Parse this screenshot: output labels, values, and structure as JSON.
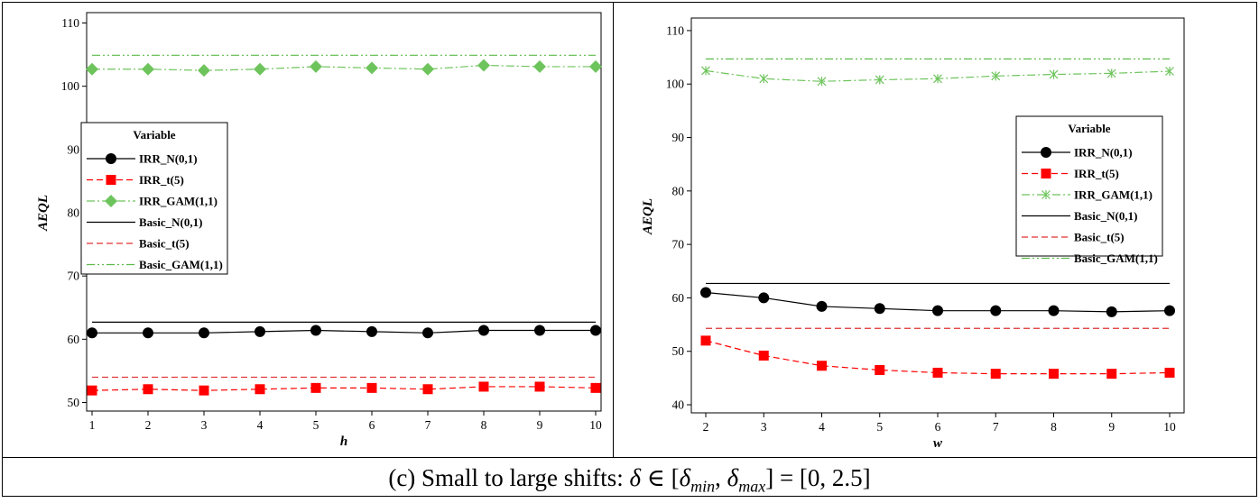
{
  "colors": {
    "irr_normal": "#000000",
    "irr_t": "#ff0000",
    "irr_gam": "#6ec45c",
    "basic_normal": "#000000",
    "basic_t": "#e03030",
    "basic_gam": "#5cba4a"
  },
  "caption": "(c) Small to large shifts: δ ∈ [δ_min, δ_max] = [0, 2.5]",
  "chart_data": [
    {
      "type": "line",
      "xlabel": "h",
      "ylabel": "AEQL",
      "x": [
        1,
        2,
        3,
        4,
        5,
        6,
        7,
        8,
        9,
        10
      ],
      "xlim": [
        1,
        10
      ],
      "ylim": [
        49.5,
        110.5
      ],
      "yticks": [
        50,
        60,
        70,
        80,
        90,
        100,
        110
      ],
      "legend_title": "Variable",
      "legend_position": "left-middle",
      "series": [
        {
          "name": "IRR_N(0,1)",
          "marker": "circle",
          "dash": "solid",
          "values": [
            61.0,
            61.0,
            61.0,
            61.2,
            61.4,
            61.2,
            61.0,
            61.4,
            61.4,
            61.4
          ]
        },
        {
          "name": "IRR_t(5)",
          "marker": "square",
          "dash": "dash",
          "values": [
            51.9,
            52.1,
            51.9,
            52.1,
            52.3,
            52.3,
            52.1,
            52.5,
            52.5,
            52.3
          ]
        },
        {
          "name": "IRR_GAM(1,1)",
          "marker": "diamond",
          "dash": "dashdot",
          "values": [
            102.7,
            102.7,
            102.5,
            102.7,
            103.1,
            102.9,
            102.7,
            103.3,
            103.1,
            103.1
          ]
        },
        {
          "name": "Basic_N(0,1)",
          "marker": "none",
          "dash": "solid",
          "values": [
            62.7,
            62.7,
            62.7,
            62.7,
            62.7,
            62.7,
            62.7,
            62.7,
            62.7,
            62.7
          ]
        },
        {
          "name": "Basic_t(5)",
          "marker": "none",
          "dash": "dash",
          "values": [
            54.0,
            54.0,
            54.0,
            54.0,
            54.0,
            54.0,
            54.0,
            54.0,
            54.0,
            54.0
          ]
        },
        {
          "name": "Basic_GAM(1,1)",
          "marker": "none",
          "dash": "dashdotdot",
          "values": [
            104.9,
            104.9,
            104.9,
            104.9,
            104.9,
            104.9,
            104.9,
            104.9,
            104.9,
            104.9
          ]
        }
      ]
    },
    {
      "type": "line",
      "xlabel": "w",
      "ylabel": "AEQL",
      "x": [
        2,
        3,
        4,
        5,
        6,
        7,
        8,
        9,
        10
      ],
      "xlim": [
        2,
        10
      ],
      "ylim": [
        39.5,
        111
      ],
      "yticks": [
        40,
        50,
        60,
        70,
        80,
        90,
        100,
        110
      ],
      "legend_title": "Variable",
      "legend_position": "right-upper",
      "series": [
        {
          "name": "IRR_N(0,1)",
          "marker": "circle",
          "dash": "solid",
          "values": [
            61.0,
            60.0,
            58.4,
            58.0,
            57.6,
            57.6,
            57.6,
            57.4,
            57.6
          ]
        },
        {
          "name": "IRR_t(5)",
          "marker": "square",
          "dash": "dash",
          "values": [
            52.0,
            49.2,
            47.3,
            46.5,
            46.0,
            45.8,
            45.8,
            45.8,
            46.0
          ]
        },
        {
          "name": "IRR_GAM(1,1)",
          "marker": "star",
          "dash": "dashdot",
          "values": [
            102.5,
            101.0,
            100.5,
            100.8,
            101.0,
            101.5,
            101.8,
            102.0,
            102.4
          ]
        },
        {
          "name": "Basic_N(0,1)",
          "marker": "none",
          "dash": "solid",
          "values": [
            62.7,
            62.7,
            62.7,
            62.7,
            62.7,
            62.7,
            62.7,
            62.7,
            62.7
          ]
        },
        {
          "name": "Basic_t(5)",
          "marker": "none",
          "dash": "dash",
          "values": [
            54.3,
            54.3,
            54.3,
            54.3,
            54.3,
            54.3,
            54.3,
            54.3,
            54.3
          ]
        },
        {
          "name": "Basic_GAM(1,1)",
          "marker": "none",
          "dash": "dashdotdot",
          "values": [
            104.7,
            104.7,
            104.7,
            104.7,
            104.7,
            104.7,
            104.7,
            104.7,
            104.7
          ]
        }
      ]
    }
  ]
}
